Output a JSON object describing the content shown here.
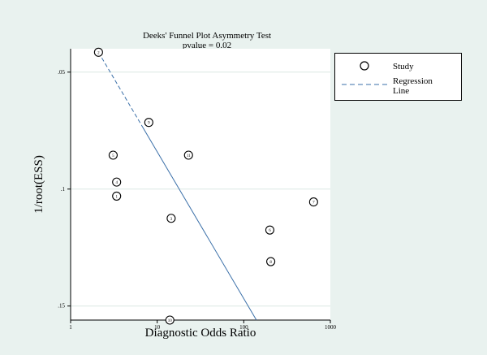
{
  "chart_data": {
    "type": "scatter",
    "title": "Deeks' Funnel Plot Asymmetry Test",
    "subtitle": "pvalue =   0.02",
    "xlabel": "Diagnostic Odds Ratio",
    "ylabel": "1/root(ESS)",
    "x_scale": "log",
    "xlim": [
      1,
      1000
    ],
    "ylim": [
      0.156,
      0.04
    ],
    "x_ticks": [
      "1",
      "10",
      "100",
      "1000"
    ],
    "y_ticks": [
      ".05",
      ".1",
      ".15"
    ],
    "grid": "horizontal",
    "legend_position": "right",
    "legend": {
      "study": "Study",
      "regression_1": "Regression",
      "regression_2": "Line"
    },
    "colors": {
      "regression_line": "#3a6fa8",
      "background": "#e9f2ef",
      "plot_area": "#ffffff"
    },
    "studies": [
      {
        "label": "1",
        "x": 3.4,
        "y": 0.103
      },
      {
        "label": "2",
        "x": 2.1,
        "y": 0.0415
      },
      {
        "label": "3",
        "x": 14.5,
        "y": 0.1125
      },
      {
        "label": "4",
        "x": 3.4,
        "y": 0.097
      },
      {
        "label": "5",
        "x": 3.1,
        "y": 0.0855
      },
      {
        "label": "6",
        "x": 200,
        "y": 0.1175
      },
      {
        "label": "7",
        "x": 640,
        "y": 0.1055
      },
      {
        "label": "8",
        "x": 205,
        "y": 0.131
      },
      {
        "label": "9",
        "x": 8,
        "y": 0.0715
      },
      {
        "label": "10",
        "x": 14,
        "y": 0.156
      },
      {
        "label": "11",
        "x": 23,
        "y": 0.0855
      }
    ],
    "regression_line": {
      "x": [
        2.1,
        140
      ],
      "y": [
        0.0415,
        0.156
      ]
    }
  }
}
